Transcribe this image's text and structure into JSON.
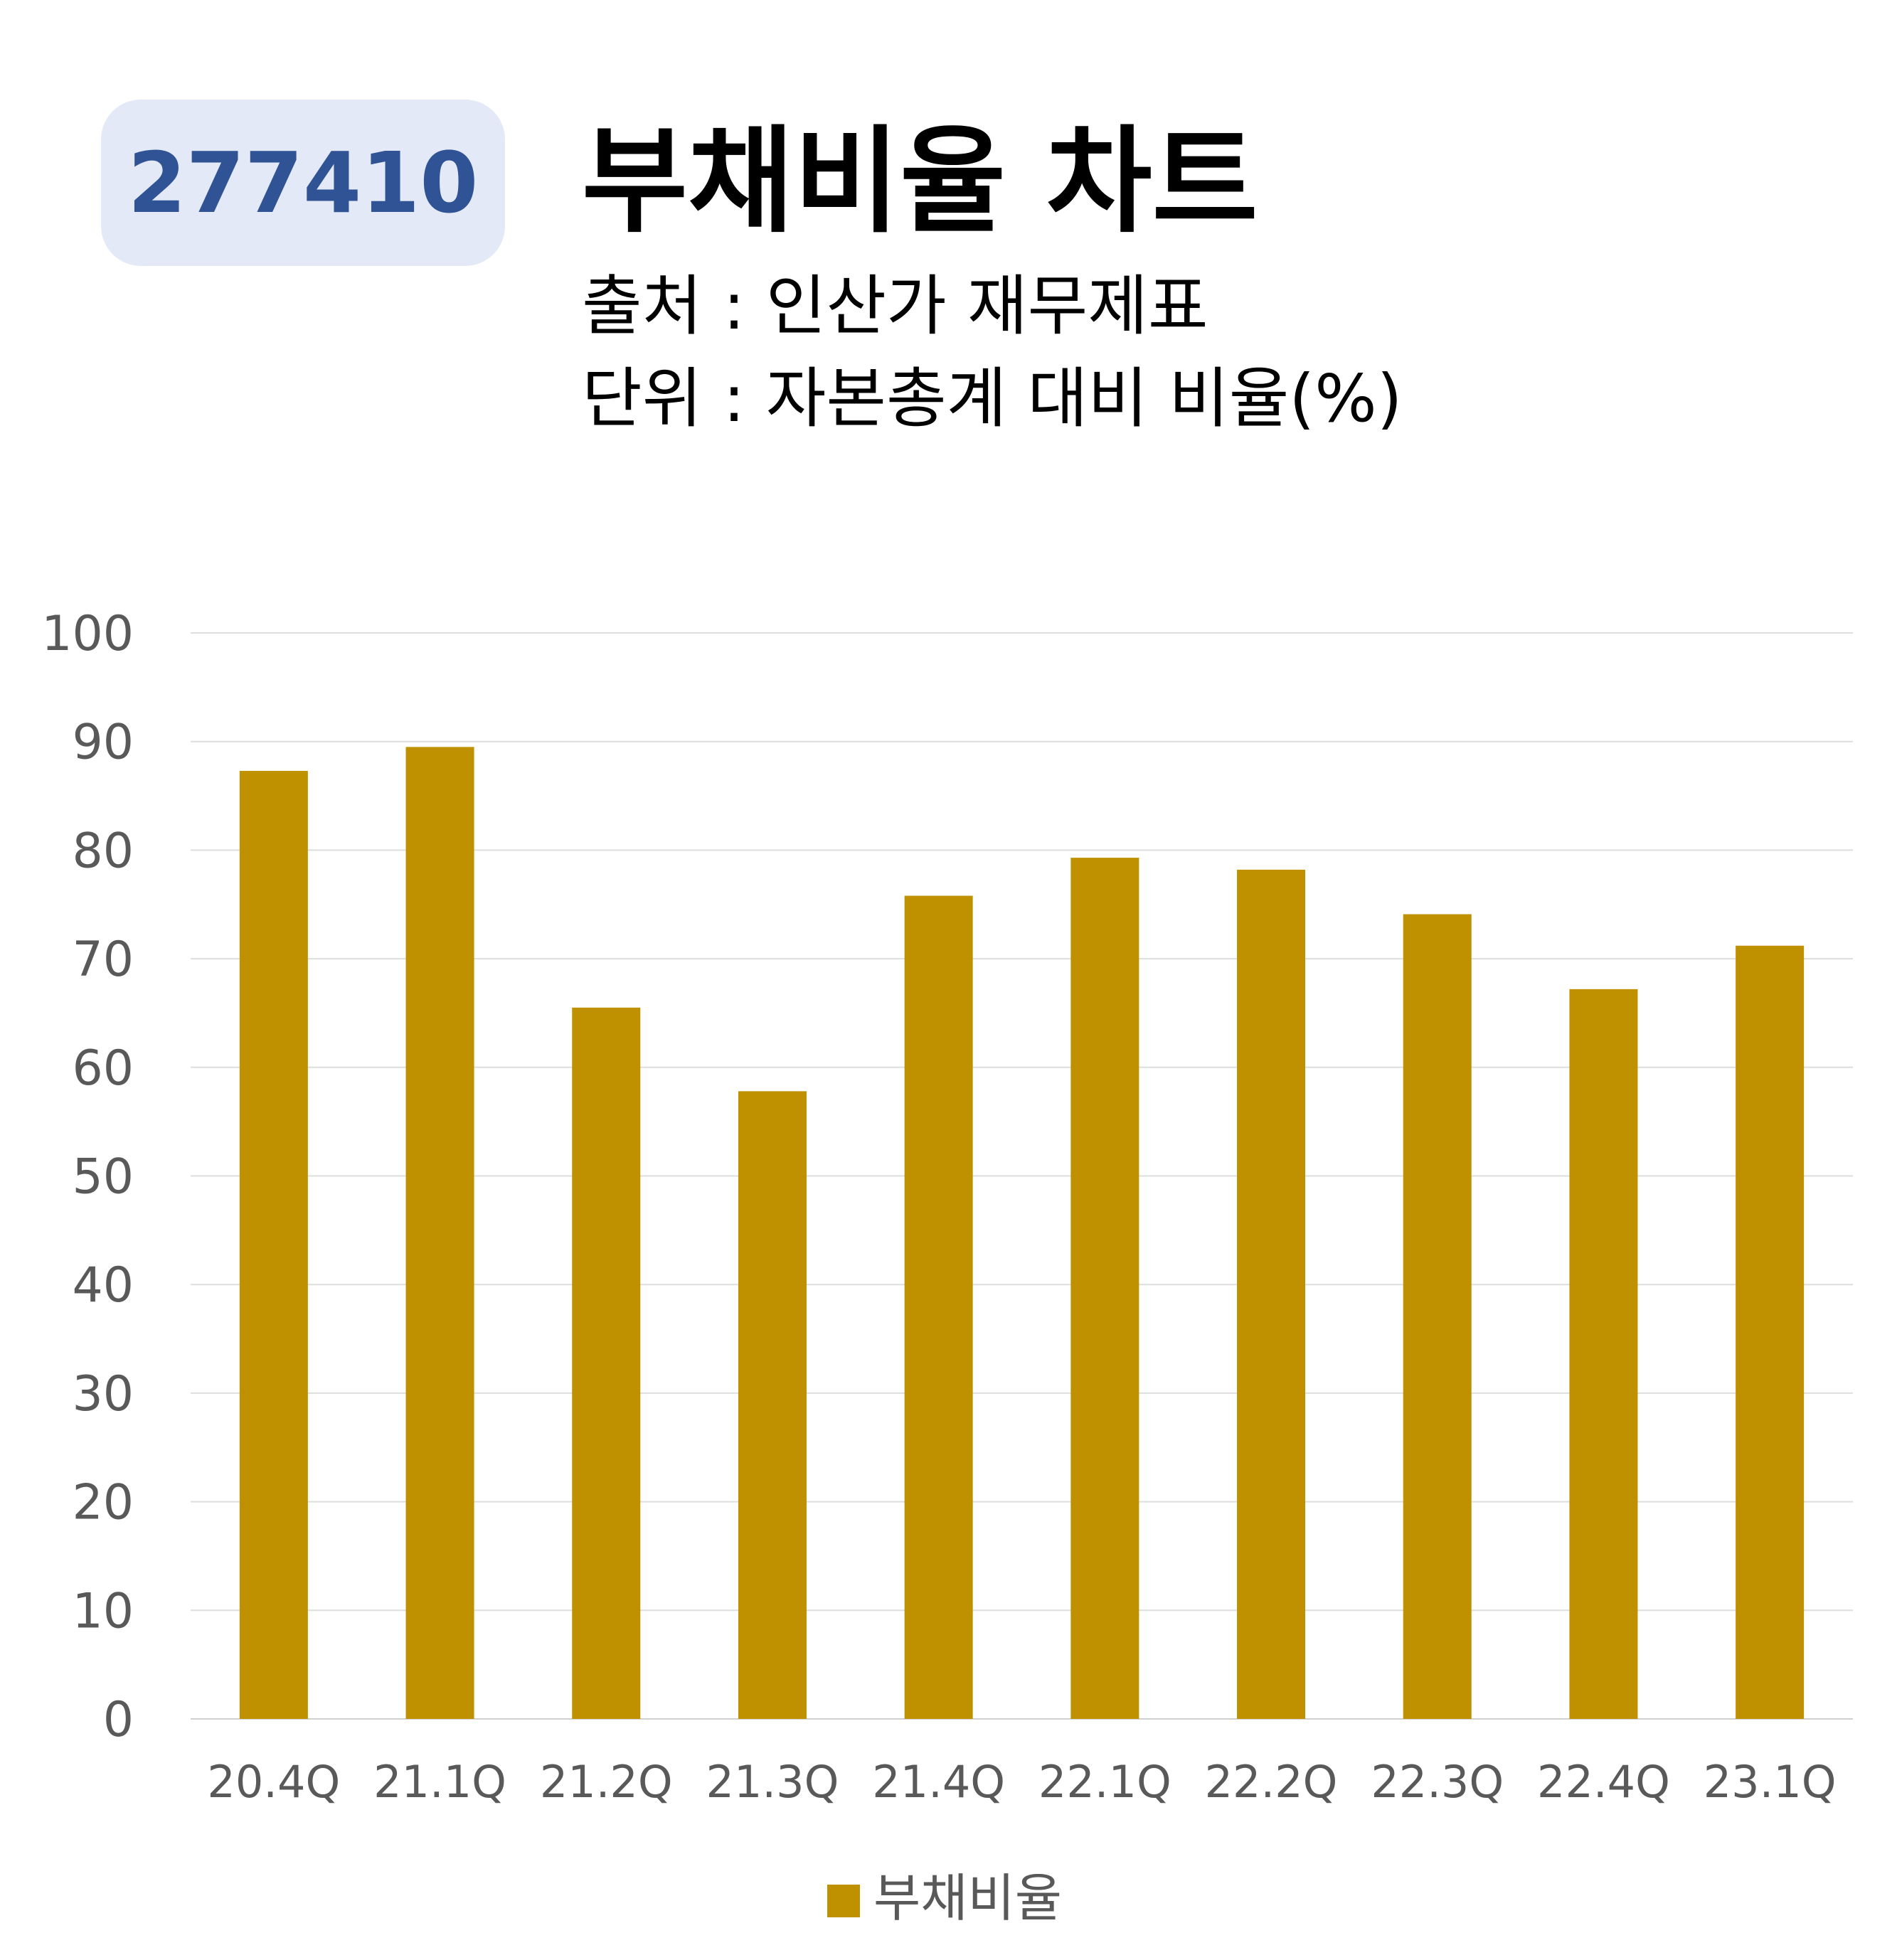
{
  "header": {
    "code": "277410",
    "title": "부채비율 차트",
    "source": "출처 : 인산가 재무제표",
    "unit": "단위 : 자본총계 대비 비율(%)"
  },
  "chart_data": {
    "type": "bar",
    "categories": [
      "20.4Q",
      "21.1Q",
      "21.2Q",
      "21.3Q",
      "21.4Q",
      "22.1Q",
      "22.2Q",
      "22.3Q",
      "22.4Q",
      "23.1Q"
    ],
    "series": [
      {
        "name": "부채비율",
        "values": [
          87.3,
          89.5,
          65.5,
          57.8,
          75.8,
          79.3,
          78.2,
          74.1,
          67.2,
          71.2
        ]
      }
    ],
    "ylim": [
      0,
      100
    ],
    "yticks": [
      0,
      10,
      20,
      30,
      40,
      50,
      60,
      70,
      80,
      90,
      100
    ],
    "grid": true,
    "legend": "bottom",
    "bar_color": "#bf9000"
  }
}
